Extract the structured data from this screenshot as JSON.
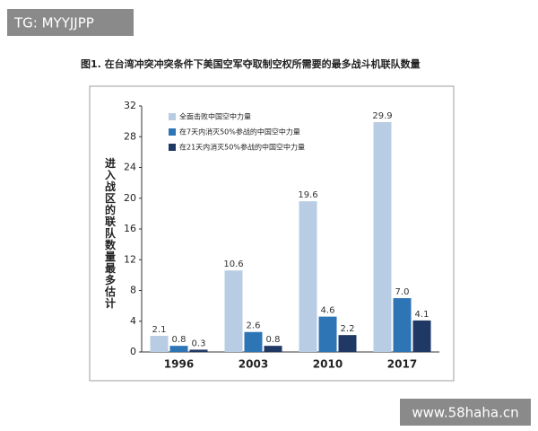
{
  "chart_data": {
    "type": "bar",
    "title": "图1. 在台湾冲突冲突条件下美国空军夺取制空权所需要的最多战斗机联队数量",
    "y_label": "进入战区的联队数量最多估计",
    "categories": [
      "1996",
      "2003",
      "2010",
      "2017"
    ],
    "series": [
      {
        "name": "全面击败中国空中力量",
        "color": "#b8cce4",
        "values": [
          2.1,
          10.6,
          19.6,
          29.9
        ]
      },
      {
        "name": "在7天内消灭50%参战的中国空中力量",
        "color": "#2e75b6",
        "values": [
          0.8,
          2.6,
          4.6,
          7.0
        ],
        "value_labels": [
          "0.8",
          "2.6",
          "4.6",
          "7.0"
        ]
      },
      {
        "name": "在21天内消灭50%参战的中国空中力量",
        "color": "#1f3864",
        "values": [
          0.3,
          0.8,
          2.2,
          4.1
        ]
      }
    ],
    "ylim": [
      0,
      32
    ],
    "yticks": [
      0,
      4,
      8,
      12,
      16,
      20,
      24,
      28,
      32
    ],
    "grid": false,
    "legend": "top-left"
  },
  "watermarks": {
    "top_left": "TG: MYYJJPP",
    "bottom_right": "www.58haha.cn"
  }
}
